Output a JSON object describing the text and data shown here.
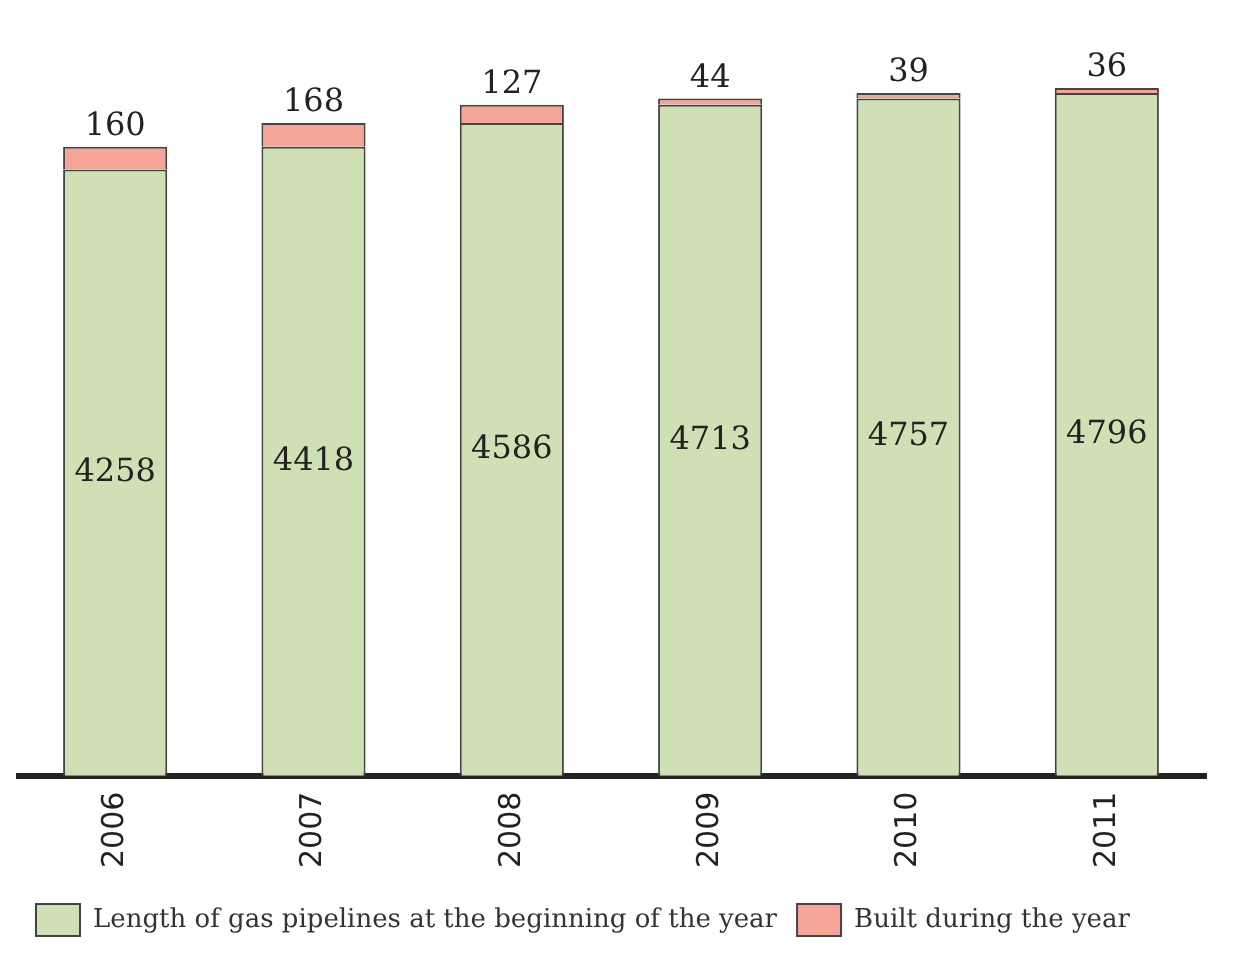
{
  "chart_data": {
    "type": "bar",
    "stacked": true,
    "categories": [
      "2006",
      "2007",
      "2008",
      "2009",
      "2010",
      "2011"
    ],
    "series": [
      {
        "name": "Length of gas pipelines at the beginning of the year",
        "color": "#cfe0b4",
        "values": [
          4258,
          4418,
          4586,
          4713,
          4757,
          4796
        ]
      },
      {
        "name": "Built during the year",
        "color": "#f4a597",
        "values": [
          160,
          168,
          127,
          44,
          39,
          36
        ]
      }
    ],
    "data_labels": true,
    "grid": false,
    "legend": "bottom left"
  }
}
